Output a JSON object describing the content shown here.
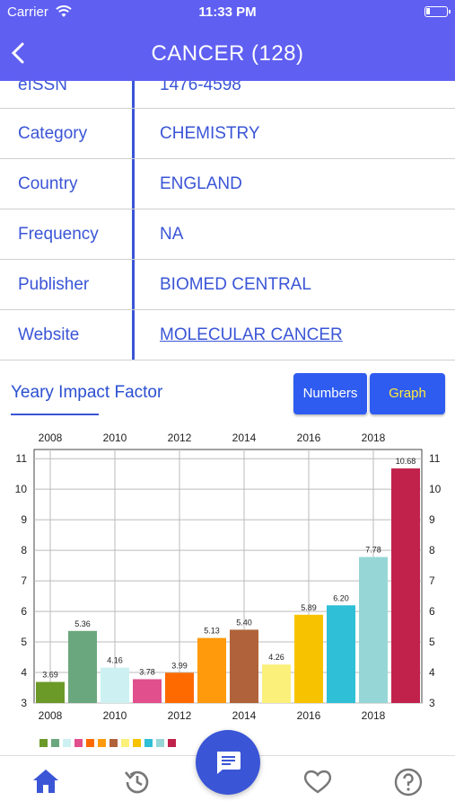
{
  "status_bar": {
    "carrier": "Carrier",
    "time": "11:33 PM"
  },
  "header": {
    "title": "CANCER (128)"
  },
  "details": [
    {
      "label": "eISSN",
      "value": "1476-4598"
    },
    {
      "label": "Category",
      "value": "CHEMISTRY"
    },
    {
      "label": "Country",
      "value": "ENGLAND"
    },
    {
      "label": "Frequency",
      "value": "NA"
    },
    {
      "label": "Publisher",
      "value": "BIOMED CENTRAL"
    },
    {
      "label": "Website",
      "value": "MOLECULAR CANCER"
    }
  ],
  "impact": {
    "title": "Yeary Impact Factor",
    "numbers_label": "Numbers",
    "graph_label": "Graph"
  },
  "chart_data": {
    "type": "bar",
    "x": [
      2008,
      2009,
      2010,
      2011,
      2012,
      2013,
      2014,
      2015,
      2016,
      2017,
      2018,
      2019
    ],
    "values": [
      3.69,
      5.36,
      4.16,
      3.78,
      3.99,
      5.13,
      5.4,
      4.26,
      5.89,
      6.2,
      7.78,
      10.68
    ],
    "value_labels": [
      "3.69",
      "5.36",
      "4.16",
      "3.78",
      "3.99",
      "5.13",
      "5.40",
      "4.26",
      "5.89",
      "6.20",
      "7.78",
      "10.68"
    ],
    "colors": [
      "#6b9a28",
      "#6ba77e",
      "#cdf1f2",
      "#e14f8d",
      "#ff6a00",
      "#ff9a0c",
      "#b0633a",
      "#fbf07a",
      "#f7c300",
      "#2fbfd6",
      "#97d6d6",
      "#c0224c"
    ],
    "x_tick_labels": [
      "2008",
      "2010",
      "2012",
      "2014",
      "2016",
      "2018"
    ],
    "y_ticks": [
      3,
      4,
      5,
      6,
      7,
      8,
      9,
      10,
      11
    ],
    "ylim": [
      3,
      11.3
    ],
    "grid": true
  }
}
